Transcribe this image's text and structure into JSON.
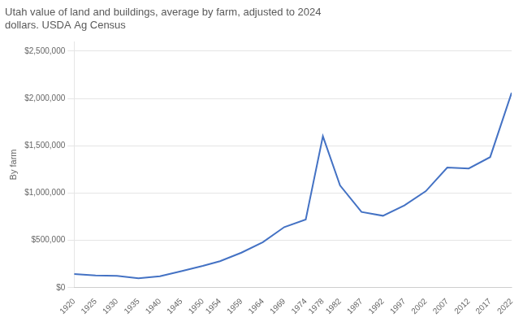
{
  "chart_data": {
    "type": "line",
    "title": [
      "Utah value of land and buildings, average by farm, adjusted to 2024",
      "dollars. USDA Ag Census"
    ],
    "y_label": "By farm",
    "x": [
      1920,
      1925,
      1930,
      1935,
      1940,
      1945,
      1950,
      1954,
      1959,
      1964,
      1969,
      1974,
      1978,
      1982,
      1987,
      1992,
      1997,
      2002,
      2007,
      2012,
      2017,
      2022
    ],
    "values": [
      145000,
      130000,
      125000,
      100000,
      120000,
      175000,
      230000,
      280000,
      370000,
      480000,
      640000,
      720000,
      1600000,
      1080000,
      800000,
      760000,
      870000,
      1020000,
      1270000,
      1260000,
      1380000,
      2060000
    ],
    "color": "#4472c4",
    "xlim": [
      1920,
      2022
    ],
    "xticks": [
      1920,
      1925,
      1930,
      1935,
      1940,
      1945,
      1950,
      1954,
      1959,
      1964,
      1969,
      1974,
      1978,
      1982,
      1987,
      1992,
      1997,
      2002,
      2007,
      2012,
      2017,
      2022
    ],
    "ylim": [
      0,
      2600000
    ],
    "yticks": [
      {
        "value": 0,
        "label": "$0"
      },
      {
        "value": 500000,
        "label": "$500,000"
      },
      {
        "value": 1000000,
        "label": "$1,000,000"
      },
      {
        "value": 1500000,
        "label": "$1,500,000"
      },
      {
        "value": 2000000,
        "label": "$2,000,000"
      },
      {
        "value": 2500000,
        "label": "$2,500,000"
      }
    ],
    "grid": true
  }
}
